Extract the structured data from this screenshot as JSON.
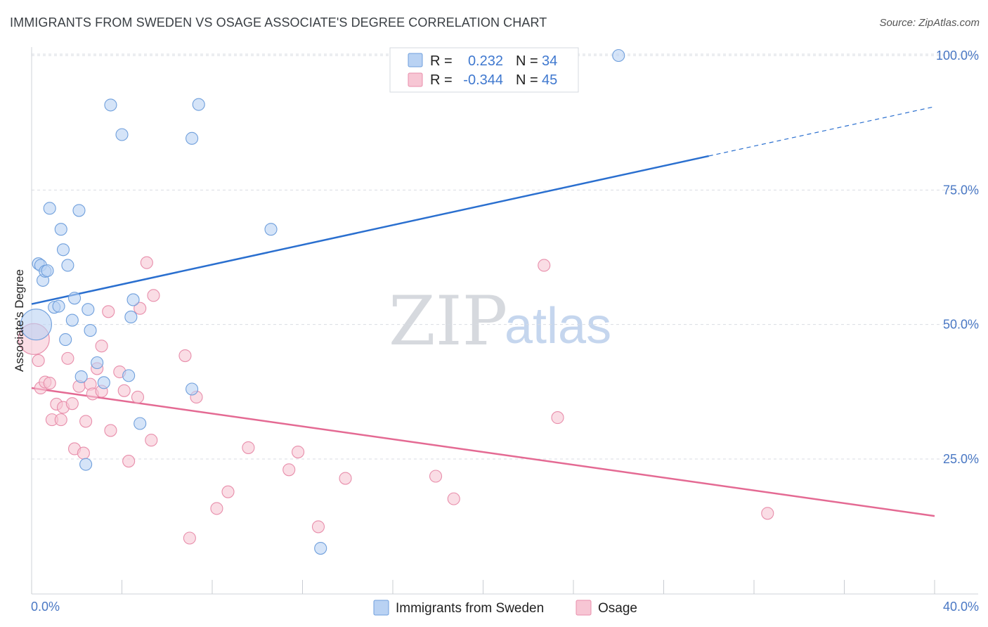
{
  "header": {
    "title": "IMMIGRANTS FROM SWEDEN VS OSAGE ASSOCIATE'S DEGREE CORRELATION CHART",
    "source": "Source: ZipAtlas.com"
  },
  "watermark": {
    "zip": "ZIP",
    "atlas": "atlas"
  },
  "colors": {
    "blue_fill": "#b9d2f3",
    "blue_stroke": "#6f9fdc",
    "blue_line": "#2a6fcf",
    "pink_fill": "#f7c6d4",
    "pink_stroke": "#e88eab",
    "pink_line": "#e46a93",
    "tick_text": "#4a78c4",
    "grid": "#d9dde3"
  },
  "legend": {
    "r_label": "R =",
    "n_label": "N =",
    "rows": [
      {
        "r": "0.232",
        "n": "34"
      },
      {
        "r": "-0.344",
        "n": "45"
      }
    ]
  },
  "chart_data": {
    "type": "scatter",
    "title": "IMMIGRANTS FROM SWEDEN VS OSAGE ASSOCIATE'S DEGREE CORRELATION CHART",
    "xlabel": "",
    "ylabel": "Associate's Degree",
    "xlim": [
      0,
      40
    ],
    "ylim": [
      0,
      105
    ],
    "x_tick_labels": [
      "0.0%",
      "40.0%"
    ],
    "y_ticks": [
      25,
      50,
      75,
      100
    ],
    "y_tick_labels": [
      "25.0%",
      "50.0%",
      "75.0%",
      "100.0%"
    ],
    "grid": "horizontal dashed",
    "legend_position": "top-center",
    "series": [
      {
        "name": "Immigrants from Sweden",
        "r": 0.232,
        "n": 34,
        "trend": {
          "x0": 0,
          "y0": 53.8,
          "x1": 40,
          "y1": 90.5,
          "solid_until_x": 30
        },
        "points": [
          [
            0.2,
            50.0
          ],
          [
            0.3,
            61.3
          ],
          [
            0.4,
            61.0
          ],
          [
            0.5,
            58.2
          ],
          [
            0.6,
            59.9
          ],
          [
            0.7,
            60.0
          ],
          [
            0.8,
            71.6
          ],
          [
            1.0,
            53.2
          ],
          [
            1.2,
            53.4
          ],
          [
            1.3,
            67.7
          ],
          [
            1.4,
            63.9
          ],
          [
            1.5,
            47.2
          ],
          [
            1.6,
            61.0
          ],
          [
            1.8,
            50.8
          ],
          [
            1.9,
            54.9
          ],
          [
            2.1,
            71.2
          ],
          [
            2.2,
            40.3
          ],
          [
            2.4,
            24.0
          ],
          [
            2.5,
            52.8
          ],
          [
            2.6,
            48.9
          ],
          [
            2.9,
            42.9
          ],
          [
            3.2,
            39.2
          ],
          [
            3.5,
            90.8
          ],
          [
            4.0,
            85.3
          ],
          [
            4.3,
            40.5
          ],
          [
            4.4,
            51.4
          ],
          [
            4.5,
            54.6
          ],
          [
            4.8,
            31.6
          ],
          [
            7.1,
            84.6
          ],
          [
            7.1,
            38.0
          ],
          [
            7.4,
            90.9
          ],
          [
            10.6,
            67.7
          ],
          [
            12.8,
            8.4
          ],
          [
            26.0,
            100.0
          ]
        ]
      },
      {
        "name": "Osage",
        "r": -0.344,
        "n": 45,
        "trend": {
          "x0": 0,
          "y0": 38.2,
          "x1": 40,
          "y1": 14.4
        },
        "points": [
          [
            0.1,
            47.3
          ],
          [
            0.3,
            43.3
          ],
          [
            0.4,
            38.2
          ],
          [
            0.6,
            39.3
          ],
          [
            0.8,
            39.1
          ],
          [
            0.9,
            32.3
          ],
          [
            1.1,
            35.2
          ],
          [
            1.3,
            32.3
          ],
          [
            1.4,
            34.6
          ],
          [
            1.6,
            43.7
          ],
          [
            1.8,
            35.3
          ],
          [
            1.9,
            26.9
          ],
          [
            2.1,
            38.5
          ],
          [
            2.3,
            26.1
          ],
          [
            2.4,
            32.0
          ],
          [
            2.6,
            38.9
          ],
          [
            2.7,
            37.1
          ],
          [
            2.9,
            41.8
          ],
          [
            3.1,
            37.6
          ],
          [
            3.1,
            46.0
          ],
          [
            3.4,
            52.4
          ],
          [
            3.5,
            30.3
          ],
          [
            3.9,
            41.2
          ],
          [
            4.1,
            37.7
          ],
          [
            4.3,
            24.6
          ],
          [
            4.7,
            36.5
          ],
          [
            4.8,
            53.0
          ],
          [
            5.1,
            61.5
          ],
          [
            5.3,
            28.5
          ],
          [
            5.4,
            55.4
          ],
          [
            6.8,
            44.2
          ],
          [
            7.0,
            10.3
          ],
          [
            7.3,
            36.5
          ],
          [
            8.2,
            15.8
          ],
          [
            8.7,
            18.9
          ],
          [
            9.6,
            27.1
          ],
          [
            11.4,
            23.0
          ],
          [
            11.8,
            26.3
          ],
          [
            12.7,
            12.4
          ],
          [
            13.9,
            21.4
          ],
          [
            17.9,
            21.8
          ],
          [
            18.7,
            17.6
          ],
          [
            22.7,
            61.0
          ],
          [
            23.3,
            32.7
          ],
          [
            32.6,
            14.9
          ]
        ]
      }
    ]
  }
}
